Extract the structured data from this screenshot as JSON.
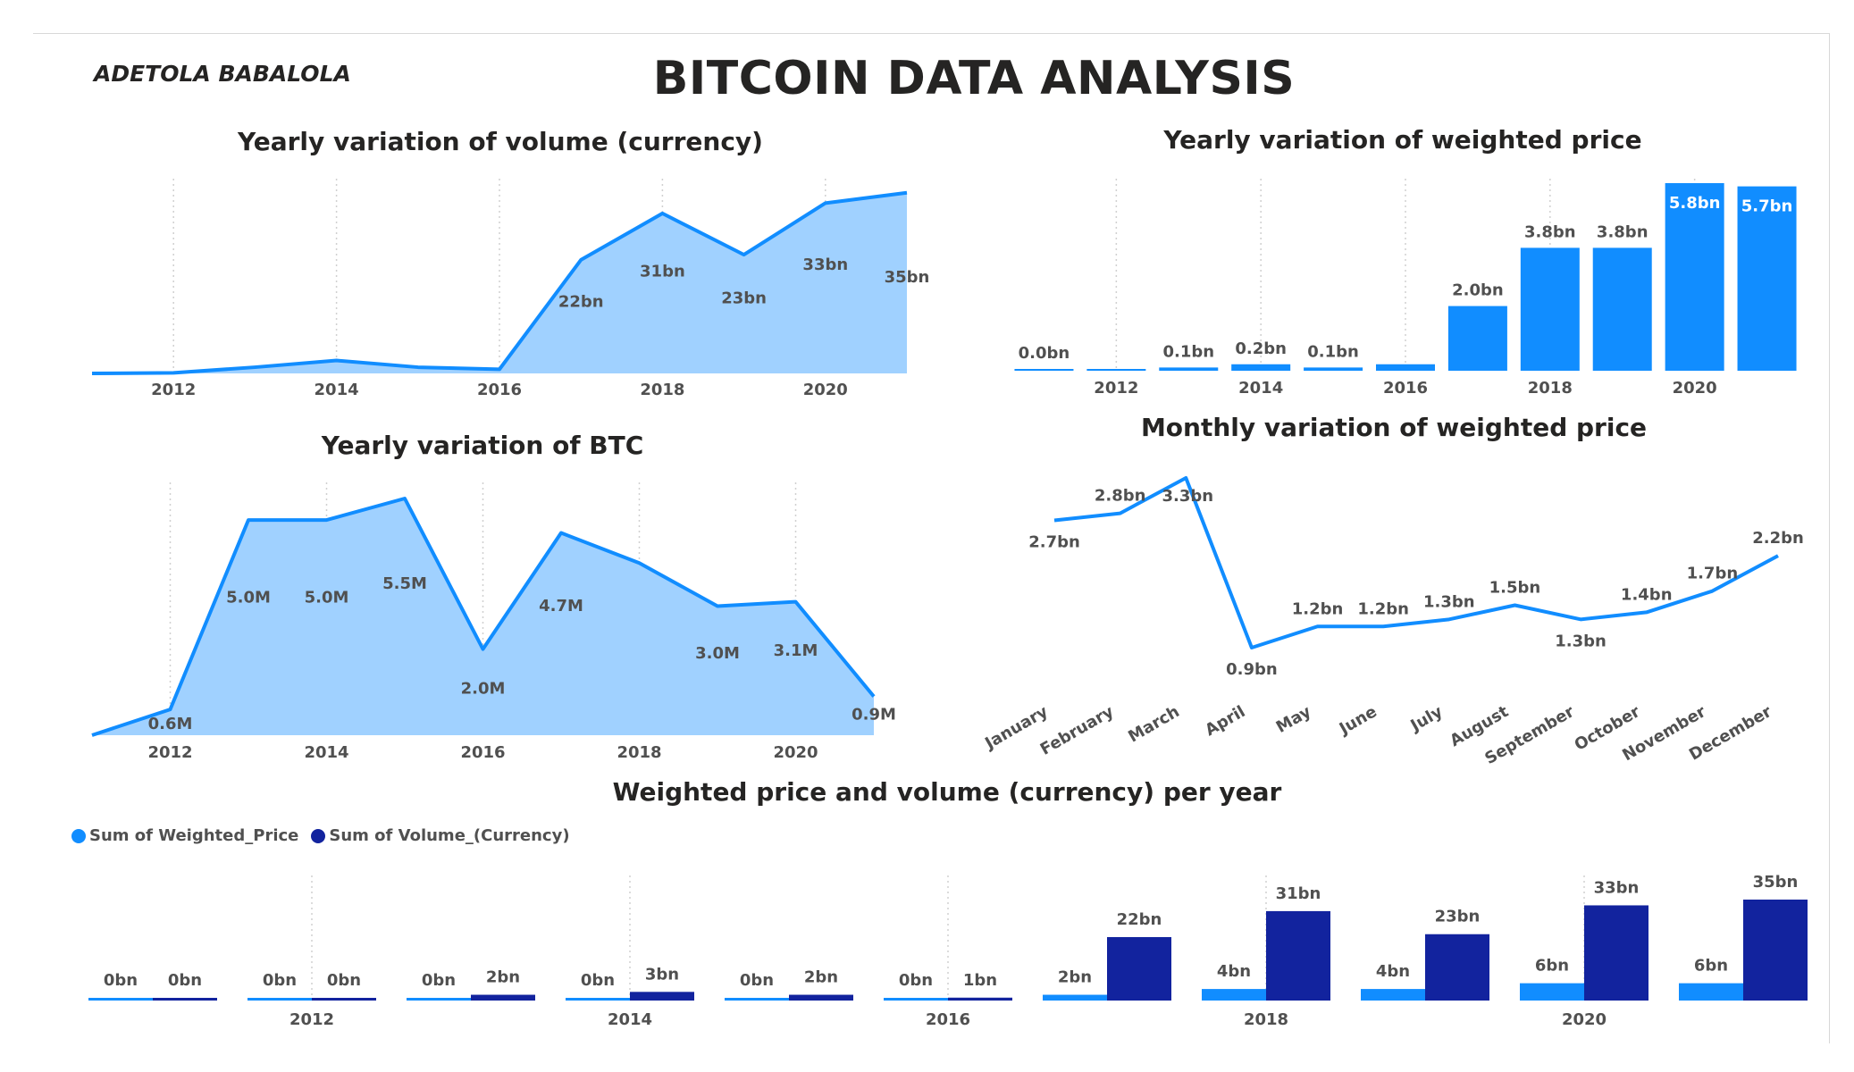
{
  "header": {
    "author": "ADETOLA BABALOLA",
    "title": "BITCOIN DATA ANALYSIS"
  },
  "colors": {
    "line": "#118DFF",
    "area": "#A0D1FF",
    "bar": "#118DFF",
    "dark": "#12239E",
    "text": "#505050"
  },
  "chart_data": [
    {
      "id": "volume",
      "type": "area",
      "title": "Yearly variation of volume (currency)",
      "x": [
        2011,
        2012,
        2013,
        2014,
        2015,
        2016,
        2017,
        2018,
        2019,
        2020,
        2021
      ],
      "values": [
        0.0,
        0.1,
        1.2,
        2.5,
        1.2,
        0.8,
        22,
        31,
        23,
        33,
        35
      ],
      "labels": [
        "",
        "",
        "",
        "",
        "",
        "",
        "22bn",
        "31bn",
        "23bn",
        "33bn",
        "35bn"
      ],
      "xticks": [
        "2012",
        "2014",
        "2016",
        "2018",
        "2020"
      ]
    },
    {
      "id": "weighted",
      "type": "bar",
      "title": "Yearly variation of weighted price",
      "x": [
        2011,
        2012,
        2013,
        2014,
        2015,
        2016,
        2017,
        2018,
        2019,
        2020,
        2021
      ],
      "values": [
        0.0,
        0.01,
        0.1,
        0.2,
        0.1,
        0.2,
        2.0,
        3.8,
        3.8,
        5.8,
        5.7
      ],
      "labels": [
        "0.0bn",
        "",
        "0.1bn",
        "0.2bn",
        "0.1bn",
        "",
        "2.0bn",
        "3.8bn",
        "3.8bn",
        "5.8bn",
        "5.7bn"
      ],
      "xticks": [
        "2012",
        "2014",
        "2016",
        "2018",
        "2020"
      ]
    },
    {
      "id": "btc",
      "type": "area",
      "title": "Yearly variation of BTC",
      "x": [
        2011,
        2012,
        2013,
        2014,
        2015,
        2016,
        2017,
        2018,
        2019,
        2020,
        2021
      ],
      "values": [
        0.0,
        0.6,
        5.0,
        5.0,
        5.5,
        2.0,
        4.7,
        4.0,
        3.0,
        3.1,
        0.9
      ],
      "labels": [
        "",
        "0.6M",
        "5.0M",
        "5.0M",
        "5.5M",
        "2.0M",
        "4.7M",
        "",
        "3.0M",
        "3.1M",
        "0.9M"
      ],
      "xticks": [
        "2012",
        "2014",
        "2016",
        "2018",
        "2020"
      ]
    },
    {
      "id": "monthly",
      "type": "line",
      "title": "Monthly variation of weighted price",
      "categories": [
        "January",
        "February",
        "March",
        "April",
        "May",
        "June",
        "July",
        "August",
        "September",
        "October",
        "November",
        "December"
      ],
      "values": [
        2.7,
        2.8,
        3.3,
        0.9,
        1.2,
        1.2,
        1.3,
        1.5,
        1.3,
        1.4,
        1.7,
        2.2
      ],
      "labels": [
        "2.7bn",
        "2.8bn",
        "3.3bn",
        "0.9bn",
        "1.2bn",
        "1.2bn",
        "1.3bn",
        "1.5bn",
        "1.3bn",
        "1.4bn",
        "1.7bn",
        "2.2bn"
      ]
    },
    {
      "id": "combo",
      "type": "bar",
      "title": "Weighted price and volume (currency) per year",
      "x": [
        2011,
        2012,
        2013,
        2014,
        2015,
        2016,
        2017,
        2018,
        2019,
        2020,
        2021
      ],
      "xticks": [
        "2012",
        "2014",
        "2016",
        "2018",
        "2020"
      ],
      "series": [
        {
          "name": "Sum of Weighted_Price",
          "values": [
            0,
            0,
            0,
            0,
            0,
            0,
            2,
            4,
            4,
            6,
            6
          ],
          "labels": [
            "0bn",
            "0bn",
            "0bn",
            "0bn",
            "0bn",
            "0bn",
            "2bn",
            "4bn",
            "4bn",
            "6bn",
            "6bn"
          ]
        },
        {
          "name": "Sum of Volume_(Currency)",
          "values": [
            0,
            0,
            2,
            3,
            2,
            1,
            22,
            31,
            23,
            33,
            35
          ],
          "labels": [
            "0bn",
            "0bn",
            "2bn",
            "3bn",
            "2bn",
            "1bn",
            "22bn",
            "31bn",
            "23bn",
            "33bn",
            "35bn"
          ]
        }
      ]
    }
  ]
}
